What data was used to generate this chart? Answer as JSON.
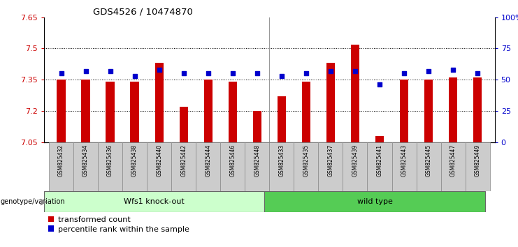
{
  "title": "GDS4526 / 10474870",
  "categories": [
    "GSM825432",
    "GSM825434",
    "GSM825436",
    "GSM825438",
    "GSM825440",
    "GSM825442",
    "GSM825444",
    "GSM825446",
    "GSM825448",
    "GSM825433",
    "GSM825435",
    "GSM825437",
    "GSM825439",
    "GSM825441",
    "GSM825443",
    "GSM825445",
    "GSM825447",
    "GSM825449"
  ],
  "red_values": [
    7.35,
    7.35,
    7.34,
    7.34,
    7.43,
    7.22,
    7.35,
    7.34,
    7.2,
    7.27,
    7.34,
    7.43,
    7.52,
    7.08,
    7.35,
    7.35,
    7.36,
    7.36
  ],
  "blue_values": [
    55,
    57,
    57,
    53,
    58,
    55,
    55,
    55,
    55,
    53,
    55,
    57,
    57,
    46,
    55,
    57,
    58,
    55
  ],
  "group1_label": "Wfs1 knock-out",
  "group2_label": "wild type",
  "group1_count": 9,
  "group2_count": 9,
  "y_min": 7.05,
  "y_max": 7.65,
  "y_ticks": [
    7.05,
    7.2,
    7.35,
    7.5,
    7.65
  ],
  "y_tick_labels": [
    "7.05",
    "7.2",
    "7.35",
    "7.5",
    "7.65"
  ],
  "y2_ticks": [
    0,
    25,
    50,
    75,
    100
  ],
  "y2_tick_labels": [
    "0",
    "25",
    "50",
    "75",
    "100%"
  ],
  "bar_color": "#cc0000",
  "marker_color": "#0000cc",
  "group1_bg": "#ccffcc",
  "group2_bg": "#55cc55",
  "tick_box_bg": "#cccccc",
  "tick_box_edge": "#888888",
  "xlabel_color": "#cc0000",
  "dotted_line_color": "#000000",
  "bar_width": 0.35,
  "legend_label1": "transformed count",
  "legend_label2": "percentile rank within the sample",
  "genotype_label": "genotype/variation"
}
